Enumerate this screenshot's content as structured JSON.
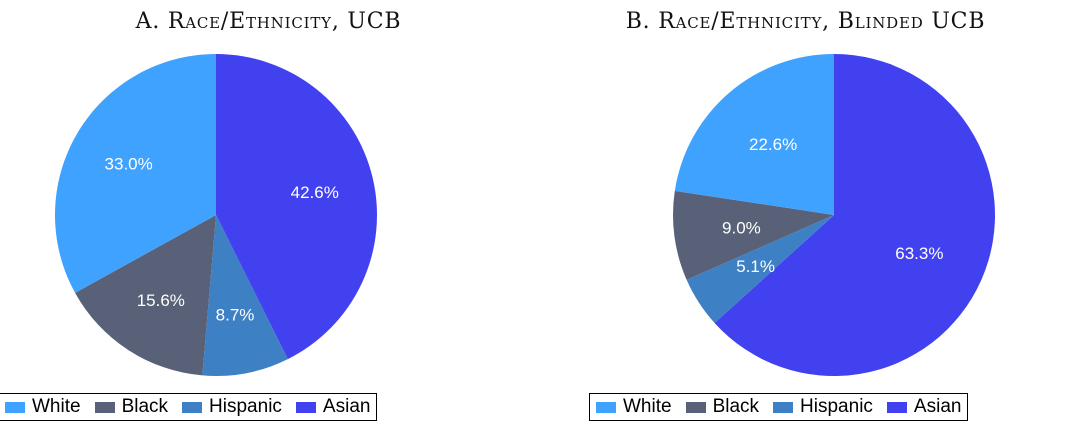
{
  "colors": {
    "White": "#3fa2ff",
    "Black": "#596178",
    "Hispanic": "#3e80c4",
    "Asian": "#4141f0"
  },
  "chart_data": [
    {
      "type": "pie",
      "title": "A. Race/Ethnicity, UCB",
      "categories": [
        "White",
        "Black",
        "Hispanic",
        "Asian"
      ],
      "values": [
        33.0,
        15.6,
        8.7,
        42.6
      ],
      "labels": [
        "33.0%",
        "15.6%",
        "8.7%",
        "42.6%"
      ],
      "legend": [
        "White",
        "Black",
        "Hispanic",
        "Asian"
      ],
      "legend_position": "bottom"
    },
    {
      "type": "pie",
      "title": "B. Race/Ethnicity, Blinded UCB",
      "categories": [
        "White",
        "Black",
        "Hispanic",
        "Asian"
      ],
      "values": [
        22.6,
        9.0,
        5.1,
        63.3
      ],
      "labels": [
        "22.6%",
        "9.0%",
        "5.1%",
        "63.3%"
      ],
      "legend": [
        "White",
        "Black",
        "Hispanic",
        "Asian"
      ],
      "legend_position": "bottom"
    }
  ]
}
